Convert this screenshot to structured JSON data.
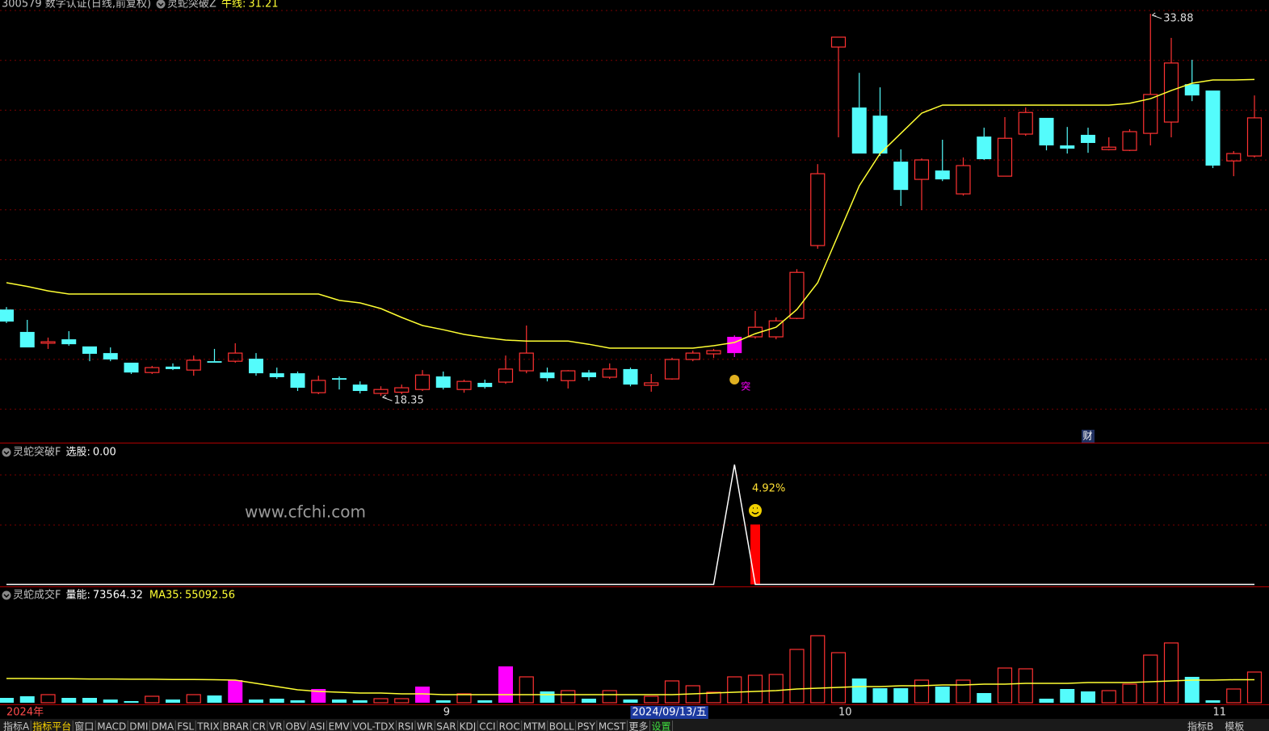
{
  "chart_data": [
    {
      "type": "candlestick",
      "title": "300579 数字认证(日线,前复权)",
      "indicator": "灵蛇突破Z",
      "categories": [
        "2024年",
        null,
        null,
        null,
        null,
        null,
        null,
        null,
        null,
        null,
        null,
        null,
        null,
        null,
        null,
        null,
        null,
        null,
        null,
        null,
        null,
        "9",
        null,
        null,
        null,
        null,
        null,
        null,
        null,
        null,
        null,
        null,
        null,
        null,
        null,
        null,
        null,
        null,
        null,
        null,
        "10",
        null,
        null,
        null,
        null,
        null,
        null,
        null,
        null,
        null,
        null,
        null,
        null,
        null,
        null,
        null,
        null,
        null,
        "11",
        null,
        null
      ],
      "cursor": {
        "index": 30,
        "label": "2024/09/13/五"
      },
      "open": [
        21.86,
        20.95,
        20.49,
        20.65,
        20.36,
        20.09,
        19.7,
        19.3,
        19.54,
        19.4,
        19.76,
        19.76,
        19.86,
        19.27,
        19.27,
        18.48,
        19.07,
        18.81,
        18.45,
        18.5,
        18.61,
        19.14,
        18.61,
        18.88,
        18.91,
        19.37,
        19.3,
        18.97,
        19.3,
        19.11,
        19.44,
        18.78,
        19.04,
        19.83,
        20.06,
        20.09,
        20.75,
        20.75,
        21.5,
        24.46,
        32.53,
        30.07,
        29.74,
        27.87,
        27.15,
        27.51,
        26.56,
        28.89,
        27.28,
        28.99,
        29.65,
        28.53,
        28.96,
        28.36,
        28.33,
        29.02,
        29.48,
        31.02,
        30.76,
        27.9,
        28.1
      ],
      "close": [
        21.37,
        20.32,
        20.55,
        20.45,
        20.06,
        19.83,
        19.3,
        19.5,
        19.44,
        19.8,
        19.7,
        20.09,
        19.27,
        19.11,
        18.68,
        18.98,
        19.01,
        18.55,
        18.61,
        18.68,
        19.2,
        18.68,
        18.94,
        18.71,
        19.44,
        20.09,
        19.07,
        19.37,
        19.11,
        19.44,
        18.81,
        18.88,
        19.83,
        20.09,
        20.19,
        20.75,
        21.14,
        21.4,
        23.37,
        27.38,
        32.93,
        28.2,
        28.2,
        26.72,
        27.94,
        27.15,
        27.71,
        27.97,
        28.82,
        29.87,
        28.53,
        28.4,
        28.63,
        28.46,
        29.09,
        30.6,
        31.88,
        30.56,
        27.71,
        28.2,
        29.65
      ],
      "high": [
        21.96,
        21.44,
        20.72,
        20.98,
        20.36,
        20.32,
        19.7,
        19.57,
        19.67,
        19.99,
        20.26,
        20.49,
        20.09,
        19.5,
        19.34,
        19.17,
        19.14,
        18.94,
        18.74,
        18.81,
        19.4,
        19.34,
        19.01,
        19.01,
        19.99,
        21.21,
        19.5,
        19.4,
        19.4,
        19.67,
        19.5,
        19.24,
        19.9,
        20.19,
        20.26,
        20.81,
        21.8,
        21.54,
        23.5,
        27.77,
        32.93,
        31.48,
        30.89,
        28.37,
        28.0,
        28.76,
        28.04,
        29.25,
        29.68,
        30.07,
        29.65,
        29.28,
        29.25,
        28.86,
        29.19,
        33.88,
        32.9,
        32.01,
        30.76,
        28.3,
        30.56
      ],
      "low": [
        21.31,
        20.32,
        20.26,
        20.39,
        19.76,
        19.76,
        19.24,
        19.24,
        19.4,
        19.17,
        19.7,
        19.7,
        19.17,
        19.04,
        18.55,
        18.42,
        18.61,
        18.45,
        18.35,
        18.42,
        18.55,
        18.61,
        18.48,
        18.65,
        18.84,
        19.27,
        18.94,
        18.65,
        18.97,
        19.04,
        18.74,
        18.52,
        19.01,
        19.76,
        19.89,
        19.93,
        20.68,
        20.65,
        21.47,
        24.33,
        28.86,
        28.2,
        28.1,
        26.07,
        25.9,
        27.08,
        26.49,
        27.94,
        27.28,
        28.92,
        28.33,
        28.2,
        28.23,
        28.33,
        28.3,
        28.53,
        28.86,
        30.33,
        27.61,
        27.28,
        28.04
      ],
      "up_color": "#ff3232",
      "down_color": "#54fcfc",
      "signal": {
        "index": 35,
        "color": "#ff00ff",
        "label": "突"
      },
      "markers": [
        {
          "index": 52,
          "label": "财"
        }
      ],
      "series": [
        {
          "name": "牛线:",
          "color": "#ffff33",
          "values": [
            22.95,
            22.8,
            22.62,
            22.49,
            22.49,
            22.49,
            22.49,
            22.49,
            22.49,
            22.49,
            22.49,
            22.49,
            22.49,
            22.49,
            22.49,
            22.49,
            22.23,
            22.13,
            21.9,
            21.54,
            21.21,
            21.04,
            20.85,
            20.72,
            20.62,
            20.58,
            20.58,
            20.58,
            20.45,
            20.29,
            20.29,
            20.29,
            20.29,
            20.29,
            20.39,
            20.52,
            20.88,
            21.14,
            21.86,
            22.95,
            24.92,
            26.89,
            28.2,
            29.02,
            29.84,
            30.17,
            30.17,
            30.17,
            30.17,
            30.17,
            30.17,
            30.17,
            30.17,
            30.17,
            30.24,
            30.43,
            30.76,
            31.06,
            31.19,
            31.19,
            31.21
          ]
        }
      ],
      "ylim": [
        16.45,
        34.44
      ]
    },
    {
      "type": "line",
      "title": "灵蛇突破F",
      "series": [
        {
          "name": "选股:",
          "color": "#ffffff",
          "value_label": "0.00",
          "values": [
            0,
            0,
            0,
            0,
            0,
            0,
            0,
            0,
            0,
            0,
            0,
            0,
            0,
            0,
            0,
            0,
            0,
            0,
            0,
            0,
            0,
            0,
            0,
            0,
            0,
            0,
            0,
            0,
            0,
            0,
            0,
            0,
            0,
            0,
            0,
            1,
            0,
            0,
            0,
            0,
            0,
            0,
            0,
            0,
            0,
            0,
            0,
            0,
            0,
            0,
            0,
            0,
            0,
            0,
            0,
            0,
            0,
            0,
            0,
            0,
            0
          ]
        }
      ],
      "bars": {
        "color": "#ff0000",
        "label": "4.92%",
        "values": [
          0,
          0,
          0,
          0,
          0,
          0,
          0,
          0,
          0,
          0,
          0,
          0,
          0,
          0,
          0,
          0,
          0,
          0,
          0,
          0,
          0,
          0,
          0,
          0,
          0,
          0,
          0,
          0,
          0,
          0,
          0,
          0,
          0,
          0,
          0,
          0,
          0.5,
          0,
          0,
          0,
          0,
          0,
          0,
          0,
          0,
          0,
          0,
          0,
          0,
          0,
          0,
          0,
          0,
          0,
          0,
          0,
          0,
          0,
          0,
          0,
          0
        ]
      },
      "ylim": [
        -0.01,
        1.17
      ]
    },
    {
      "type": "bar",
      "title": "灵蛇成交F",
      "up_color": "#ff3232",
      "series": [
        {
          "name": "量能:",
          "color": "#ffffff",
          "values": [
            11600,
            15500,
            19400,
            11600,
            11600,
            7700,
            3900,
            15500,
            7700,
            19400,
            17400,
            54200,
            7700,
            9700,
            5800,
            32900,
            7700,
            5800,
            9700,
            9700,
            38700,
            5800,
            21300,
            5800,
            87100,
            62000,
            27100,
            29000,
            9700,
            29000,
            7700,
            15500,
            52300,
            40700,
            25200,
            62000,
            65800,
            67800,
            127800,
            160700,
            120000,
            58100,
            34800,
            34800,
            54200,
            38700,
            54200,
            23200,
            83200,
            81300,
            9700,
            32900,
            27100,
            29000,
            44500,
            114200,
            143300,
            62000,
            5800,
            32900,
            73564.32
          ],
          "colors": [
            "#54fcfc",
            "#54fcfc",
            "#ff3232",
            "#54fcfc",
            "#54fcfc",
            "#54fcfc",
            "#54fcfc",
            "#ff3232",
            "#54fcfc",
            "#ff3232",
            "#54fcfc",
            "#ff00ff",
            "#54fcfc",
            "#54fcfc",
            "#54fcfc",
            "#ff00ff",
            "#54fcfc",
            "#54fcfc",
            "#ff3232",
            "#ff3232",
            "#ff00ff",
            "#54fcfc",
            "#ff3232",
            "#54fcfc",
            "#ff00ff",
            "#ff3232",
            "#54fcfc",
            "#ff3232",
            "#54fcfc",
            "#ff3232",
            "#54fcfc",
            "#ff3232",
            "#ff3232",
            "#ff3232",
            "#ff3232",
            "#ff3232",
            "#ff3232",
            "#ff3232",
            "#ff3232",
            "#ff3232",
            "#ff3232",
            "#54fcfc",
            "#54fcfc",
            "#54fcfc",
            "#ff3232",
            "#54fcfc",
            "#ff3232",
            "#54fcfc",
            "#ff3232",
            "#ff3232",
            "#54fcfc",
            "#54fcfc",
            "#54fcfc",
            "#ff3232",
            "#ff3232",
            "#ff3232",
            "#ff3232",
            "#54fcfc",
            "#54fcfc",
            "#ff3232",
            "#ff3232"
          ]
        },
        {
          "name": "MA35:",
          "color": "#ffff33",
          "values": [
            58100,
            58100,
            57500,
            57500,
            56900,
            56900,
            56300,
            56300,
            55700,
            55700,
            55100,
            54200,
            46500,
            38700,
            31000,
            27100,
            25200,
            23200,
            23200,
            21300,
            21300,
            19400,
            19400,
            19400,
            19400,
            19400,
            19400,
            19400,
            19400,
            19400,
            19400,
            19400,
            19400,
            21300,
            23200,
            25200,
            27100,
            29000,
            32900,
            34800,
            36800,
            38700,
            38700,
            40700,
            40700,
            42600,
            42600,
            44500,
            44500,
            46500,
            46500,
            46500,
            48400,
            48400,
            48400,
            50300,
            52300,
            54200,
            54200,
            55100,
            55092.56
          ]
        }
      ],
      "ylim": [
        0,
        242000
      ]
    }
  ],
  "watermark": "www.cfchi.com",
  "tabs": [
    "指标A",
    "指标平台",
    "窗口",
    "MACD",
    "DMI",
    "DMA",
    "FSL",
    "TRIX",
    "BRAR",
    "CR",
    "VR",
    "OBV",
    "ASI",
    "EMV",
    "VOL-TDX",
    "RSI",
    "WR",
    "SAR",
    "KDJ",
    "CCI",
    "ROC",
    "MTM",
    "BOLL",
    "PSY",
    "MCST",
    "更多",
    "设置"
  ],
  "right_tabs": [
    "指标B",
    "模板"
  ]
}
